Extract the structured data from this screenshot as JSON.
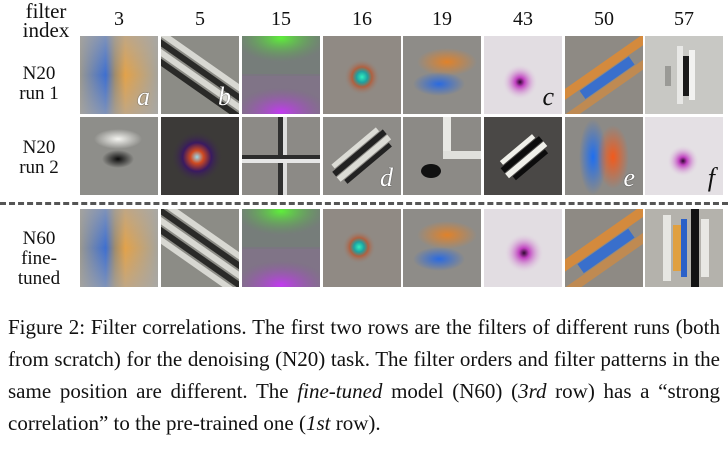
{
  "header": {
    "line1": "filter",
    "line2": "index"
  },
  "columns": [
    "3",
    "5",
    "15",
    "16",
    "19",
    "43",
    "50",
    "57"
  ],
  "rows": [
    {
      "label1": "N20",
      "label2": "run 1"
    },
    {
      "label1": "N20",
      "label2": "run 2"
    },
    {
      "label1": "N60",
      "label2": "fine-tuned"
    }
  ],
  "letters": [
    "a",
    "b",
    "c",
    "d",
    "e",
    "f"
  ],
  "caption": {
    "prefix": "Figure 2: Filter correlations. The first two rows are the filters of different runs (both from scratch) for the denoising (N20) task. The filter orders and filter patterns in the same position are different. The ",
    "em": "fine-tuned",
    "mid1": " model (N60) (",
    "ord1": "3rd",
    "mid2": " row) has a “strong correlation” to the pre-trained one (",
    "ord2": "1st",
    "suffix": " row)."
  }
}
